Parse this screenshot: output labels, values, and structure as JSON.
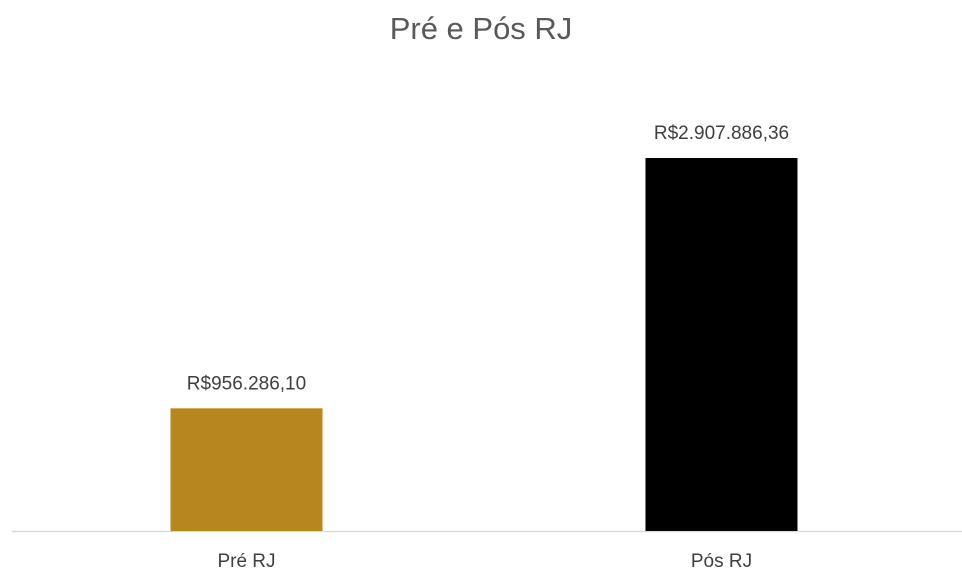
{
  "chart_data": {
    "type": "bar",
    "title": "Pré e Pós RJ",
    "categories": [
      "Pré RJ",
      "Pós RJ"
    ],
    "values": [
      956286.1,
      2907886.36
    ],
    "value_labels": [
      "R$956.286,10",
      "R$2.907.886,36"
    ],
    "colors": [
      "#b8861f",
      "#000000"
    ]
  }
}
